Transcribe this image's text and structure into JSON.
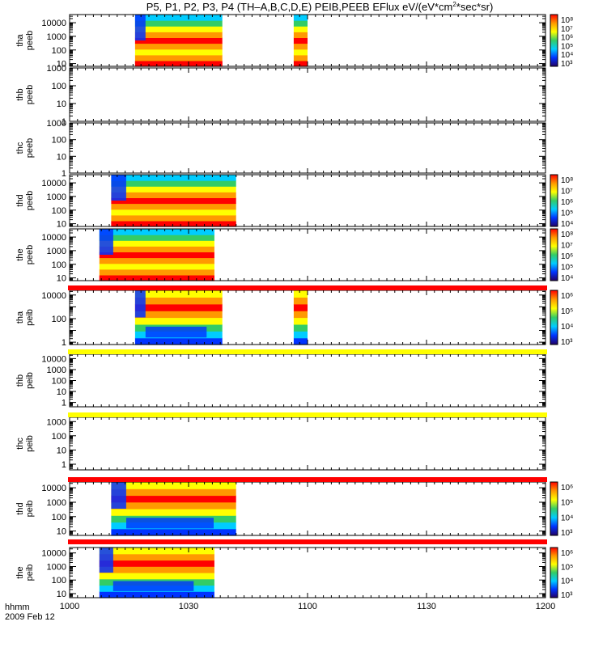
{
  "chart_data": {
    "type": "heatmap",
    "title": "P5, P1, P2, P3, P4 (TH–A,B,C,D,E) PEIB,PEEB EFlux eV/(eV*cm",
    "title_sup": "2",
    "title_tail": "*sec*sr)",
    "xaxis": {
      "label": "hhmm",
      "date": "2009 Feb 12",
      "ticks": [
        "1000",
        "1030",
        "1100",
        "1130",
        "1200"
      ],
      "range_minutes": [
        0,
        120
      ]
    },
    "panels": [
      {
        "probe": "tha",
        "product": "peeb",
        "yticks": [
          "10000",
          "1000",
          "100",
          "10"
        ],
        "ylim_log": [
          0.8,
          4.6
        ],
        "coverage": [
          [
            16.5,
            38.5
          ],
          [
            56.5,
            60.0
          ]
        ],
        "colorbar": {
          "labels": [
            "10^8",
            "10^7",
            "10^6",
            "10^5",
            "10^4",
            "10^3"
          ]
        }
      },
      {
        "probe": "thb",
        "product": "peeb",
        "yticks": [
          "1000",
          "100",
          "10",
          "1"
        ],
        "ylim_log": [
          0,
          3.0
        ],
        "coverage": [],
        "colorbar": null
      },
      {
        "probe": "thc",
        "product": "peeb",
        "yticks": [
          "1000",
          "100",
          "10",
          "1"
        ],
        "ylim_log": [
          0,
          3.0
        ],
        "coverage": [],
        "colorbar": null
      },
      {
        "probe": "thd",
        "product": "peeb",
        "yticks": [
          "10000",
          "1000",
          "100",
          "10"
        ],
        "ylim_log": [
          0.8,
          4.6
        ],
        "coverage": [
          [
            10.5,
            42.0
          ]
        ],
        "colorbar": {
          "labels": [
            "10^8",
            "10^7",
            "10^6",
            "10^5",
            "10^4"
          ]
        }
      },
      {
        "probe": "the",
        "product": "peeb",
        "yticks": [
          "10000",
          "1000",
          "100",
          "10"
        ],
        "ylim_log": [
          0.8,
          4.6
        ],
        "coverage": [
          [
            7.5,
            36.5
          ]
        ],
        "colorbar": {
          "labels": [
            "10^8",
            "10^7",
            "10^6",
            "10^5",
            "10^4"
          ]
        }
      },
      {
        "probe": "tha",
        "product": "peib",
        "yticks": [
          "10000",
          "100",
          "1"
        ],
        "ylim_log": [
          -0.2,
          4.4
        ],
        "coverage": [
          [
            16.5,
            38.5
          ],
          [
            56.5,
            60.0
          ]
        ],
        "colorbar": {
          "labels": [
            "10^6",
            "10^5",
            "10^4",
            "10^3"
          ]
        }
      },
      {
        "probe": "thb",
        "product": "peib",
        "yticks": [
          "10000",
          "1000",
          "100",
          "10",
          "1"
        ],
        "ylim_log": [
          -0.4,
          4.4
        ],
        "coverage": [],
        "colorbar": null
      },
      {
        "probe": "thc",
        "product": "peib",
        "yticks": [
          "1000",
          "100",
          "10",
          "1"
        ],
        "ylim_log": [
          -0.4,
          3.3
        ],
        "coverage": [],
        "colorbar": null
      },
      {
        "probe": "thd",
        "product": "peib",
        "yticks": [
          "10000",
          "1000",
          "100",
          "10"
        ],
        "ylim_log": [
          0.7,
          4.4
        ],
        "coverage": [
          [
            10.5,
            42.0
          ]
        ],
        "colorbar": {
          "labels": [
            "10^6",
            "10^5",
            "10^4",
            "10^3"
          ]
        }
      },
      {
        "probe": "the",
        "product": "peib",
        "yticks": [
          "10000",
          "1000",
          "100",
          "10"
        ],
        "ylim_log": [
          0.7,
          4.4
        ],
        "coverage": [
          [
            7.5,
            36.5
          ]
        ],
        "colorbar": {
          "labels": [
            "10^6",
            "10^5",
            "10^4",
            "10^3"
          ]
        }
      }
    ],
    "status_bars": [
      {
        "after_panel": 4,
        "color": "#ff0000"
      },
      {
        "after_panel": 5,
        "color": "#ffff00"
      },
      {
        "after_panel": 6,
        "color": "#ffff00"
      },
      {
        "after_panel": 7,
        "color": "#ff0000"
      },
      {
        "after_panel": 8,
        "color": "#ff0000"
      }
    ],
    "colors": {
      "max": "#ff0000",
      "high": "#ff9900",
      "mid_high": "#ffff00",
      "mid": "#33cc66",
      "mid_low": "#00ccff",
      "low": "#0033ff",
      "min": "#220066"
    }
  }
}
